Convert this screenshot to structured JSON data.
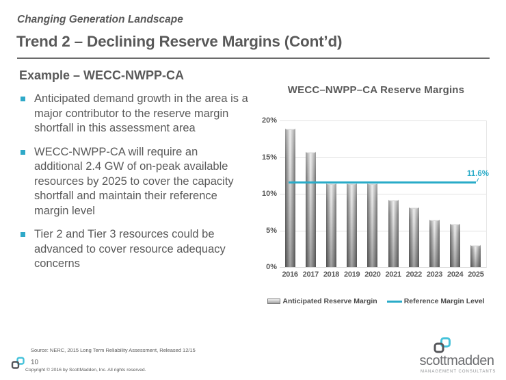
{
  "header": {
    "eyebrow": "Changing Generation Landscape",
    "title": "Trend 2 – Declining Reserve Margins (Cont’d)"
  },
  "content": {
    "heading": "Example – WECC-NWPP-CA",
    "bullets": [
      "Anticipated demand growth in the area is a major contributor to the reserve margin shortfall in this assessment area",
      "WECC-NWPP-CA will require an additional 2.4 GW of on-peak available resources by 2025 to cover the capacity shortfall and maintain their reference margin level",
      "Tier 2 and Tier 3 resources could be advanced to cover resource adequacy concerns"
    ]
  },
  "chart_data": {
    "type": "bar",
    "title": "WECC–NWPP–CA Reserve Margins",
    "categories": [
      "2016",
      "2017",
      "2018",
      "2019",
      "2020",
      "2021",
      "2022",
      "2023",
      "2024",
      "2025"
    ],
    "series": [
      {
        "name": "Anticipated Reserve Margin",
        "type": "bar",
        "values": [
          19.0,
          15.8,
          11.5,
          11.5,
          11.5,
          9.3,
          8.2,
          6.5,
          6.0,
          3.1
        ]
      }
    ],
    "reference_line": {
      "name": "Reference Margin Level",
      "value": 11.6,
      "label": "11.6%"
    },
    "xlabel": "",
    "ylabel": "",
    "ylim": [
      0,
      20
    ],
    "y_ticks": [
      {
        "value": 0,
        "label": "0%"
      },
      {
        "value": 5,
        "label": "5%"
      },
      {
        "value": 10,
        "label": "10%"
      },
      {
        "value": 15,
        "label": "15%"
      },
      {
        "value": 20,
        "label": "20%"
      }
    ],
    "grid": true,
    "legend_position": "bottom",
    "colors": {
      "bar": "#8c8c8c",
      "reference": "#29abc8",
      "gridline": "#e0e0e0"
    }
  },
  "footer": {
    "source": "Source: NERC, 2015 Long Term Reliability Assessment, Released 12/15",
    "page_number": "10",
    "copyright": "Copyright © 2016 by ScottMadden, Inc. All rights reserved.",
    "brand_name": "scottmadden",
    "brand_subtext": "MANAGEMENT CONSULTANTS"
  }
}
